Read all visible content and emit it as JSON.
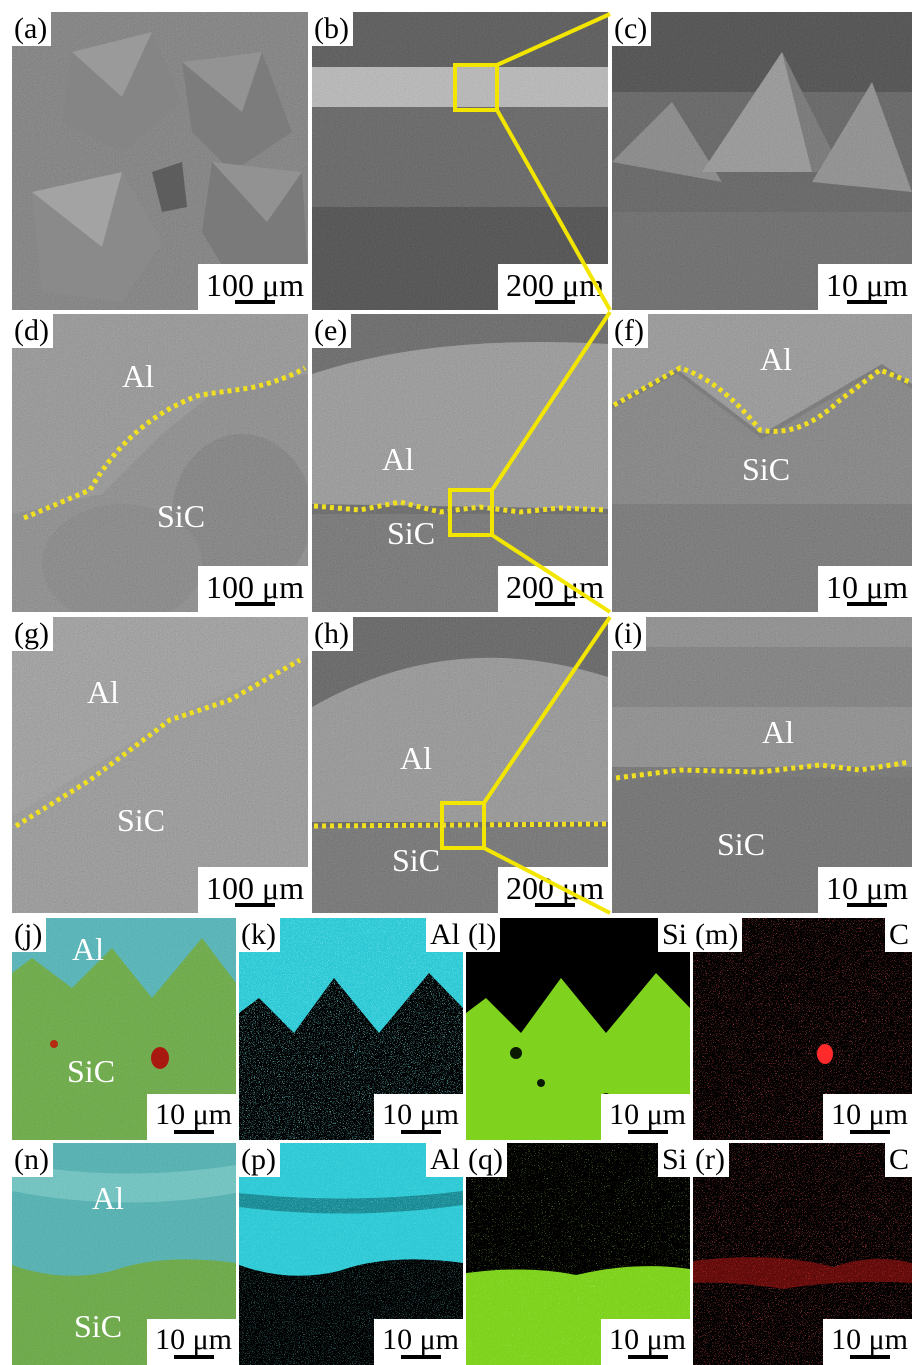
{
  "panels": {
    "a": {
      "letter": "(a)",
      "scale": "100 μm"
    },
    "b": {
      "letter": "(b)",
      "scale": "200 μm"
    },
    "c": {
      "letter": "(c)",
      "scale": "10 μm"
    },
    "d": {
      "letter": "(d)",
      "scale": "100 μm",
      "top_material": "Al",
      "bottom_material": "SiC"
    },
    "e": {
      "letter": "(e)",
      "scale": "200 μm",
      "top_material": "Al",
      "bottom_material": "SiC"
    },
    "f": {
      "letter": "(f)",
      "scale": "10 μm",
      "top_material": "Al",
      "bottom_material": "SiC"
    },
    "g": {
      "letter": "(g)",
      "scale": "100 μm",
      "top_material": "Al",
      "bottom_material": "SiC"
    },
    "h": {
      "letter": "(h)",
      "scale": "200 μm",
      "top_material": "Al",
      "bottom_material": "SiC"
    },
    "i": {
      "letter": "(i)",
      "scale": "10 μm",
      "top_material": "Al",
      "bottom_material": "SiC"
    },
    "j": {
      "letter": "(j)",
      "scale": "10 μm",
      "top_material": "Al",
      "bottom_material": "SiC"
    },
    "k": {
      "letter": "(k)",
      "scale": "10 μm",
      "element": "Al"
    },
    "l": {
      "letter": "(l)",
      "scale": "10 μm",
      "element": "Si"
    },
    "m": {
      "letter": "(m)",
      "scale": "10 μm",
      "element": "C"
    },
    "n": {
      "letter": "(n)",
      "scale": "10 μm",
      "top_material": "Al",
      "bottom_material": "SiC"
    },
    "p": {
      "letter": "(p)",
      "scale": "10 μm",
      "element": "Al"
    },
    "q": {
      "letter": "(q)",
      "scale": "10 μm",
      "element": "Si"
    },
    "r": {
      "letter": "(r)",
      "scale": "10 μm",
      "element": "C"
    }
  },
  "colors": {
    "zoom_box": "#f2e600",
    "interface_line": "#f0e020",
    "map_al": "#2fc9d6",
    "map_si": "#7fd31e",
    "map_c": "#d41818"
  }
}
